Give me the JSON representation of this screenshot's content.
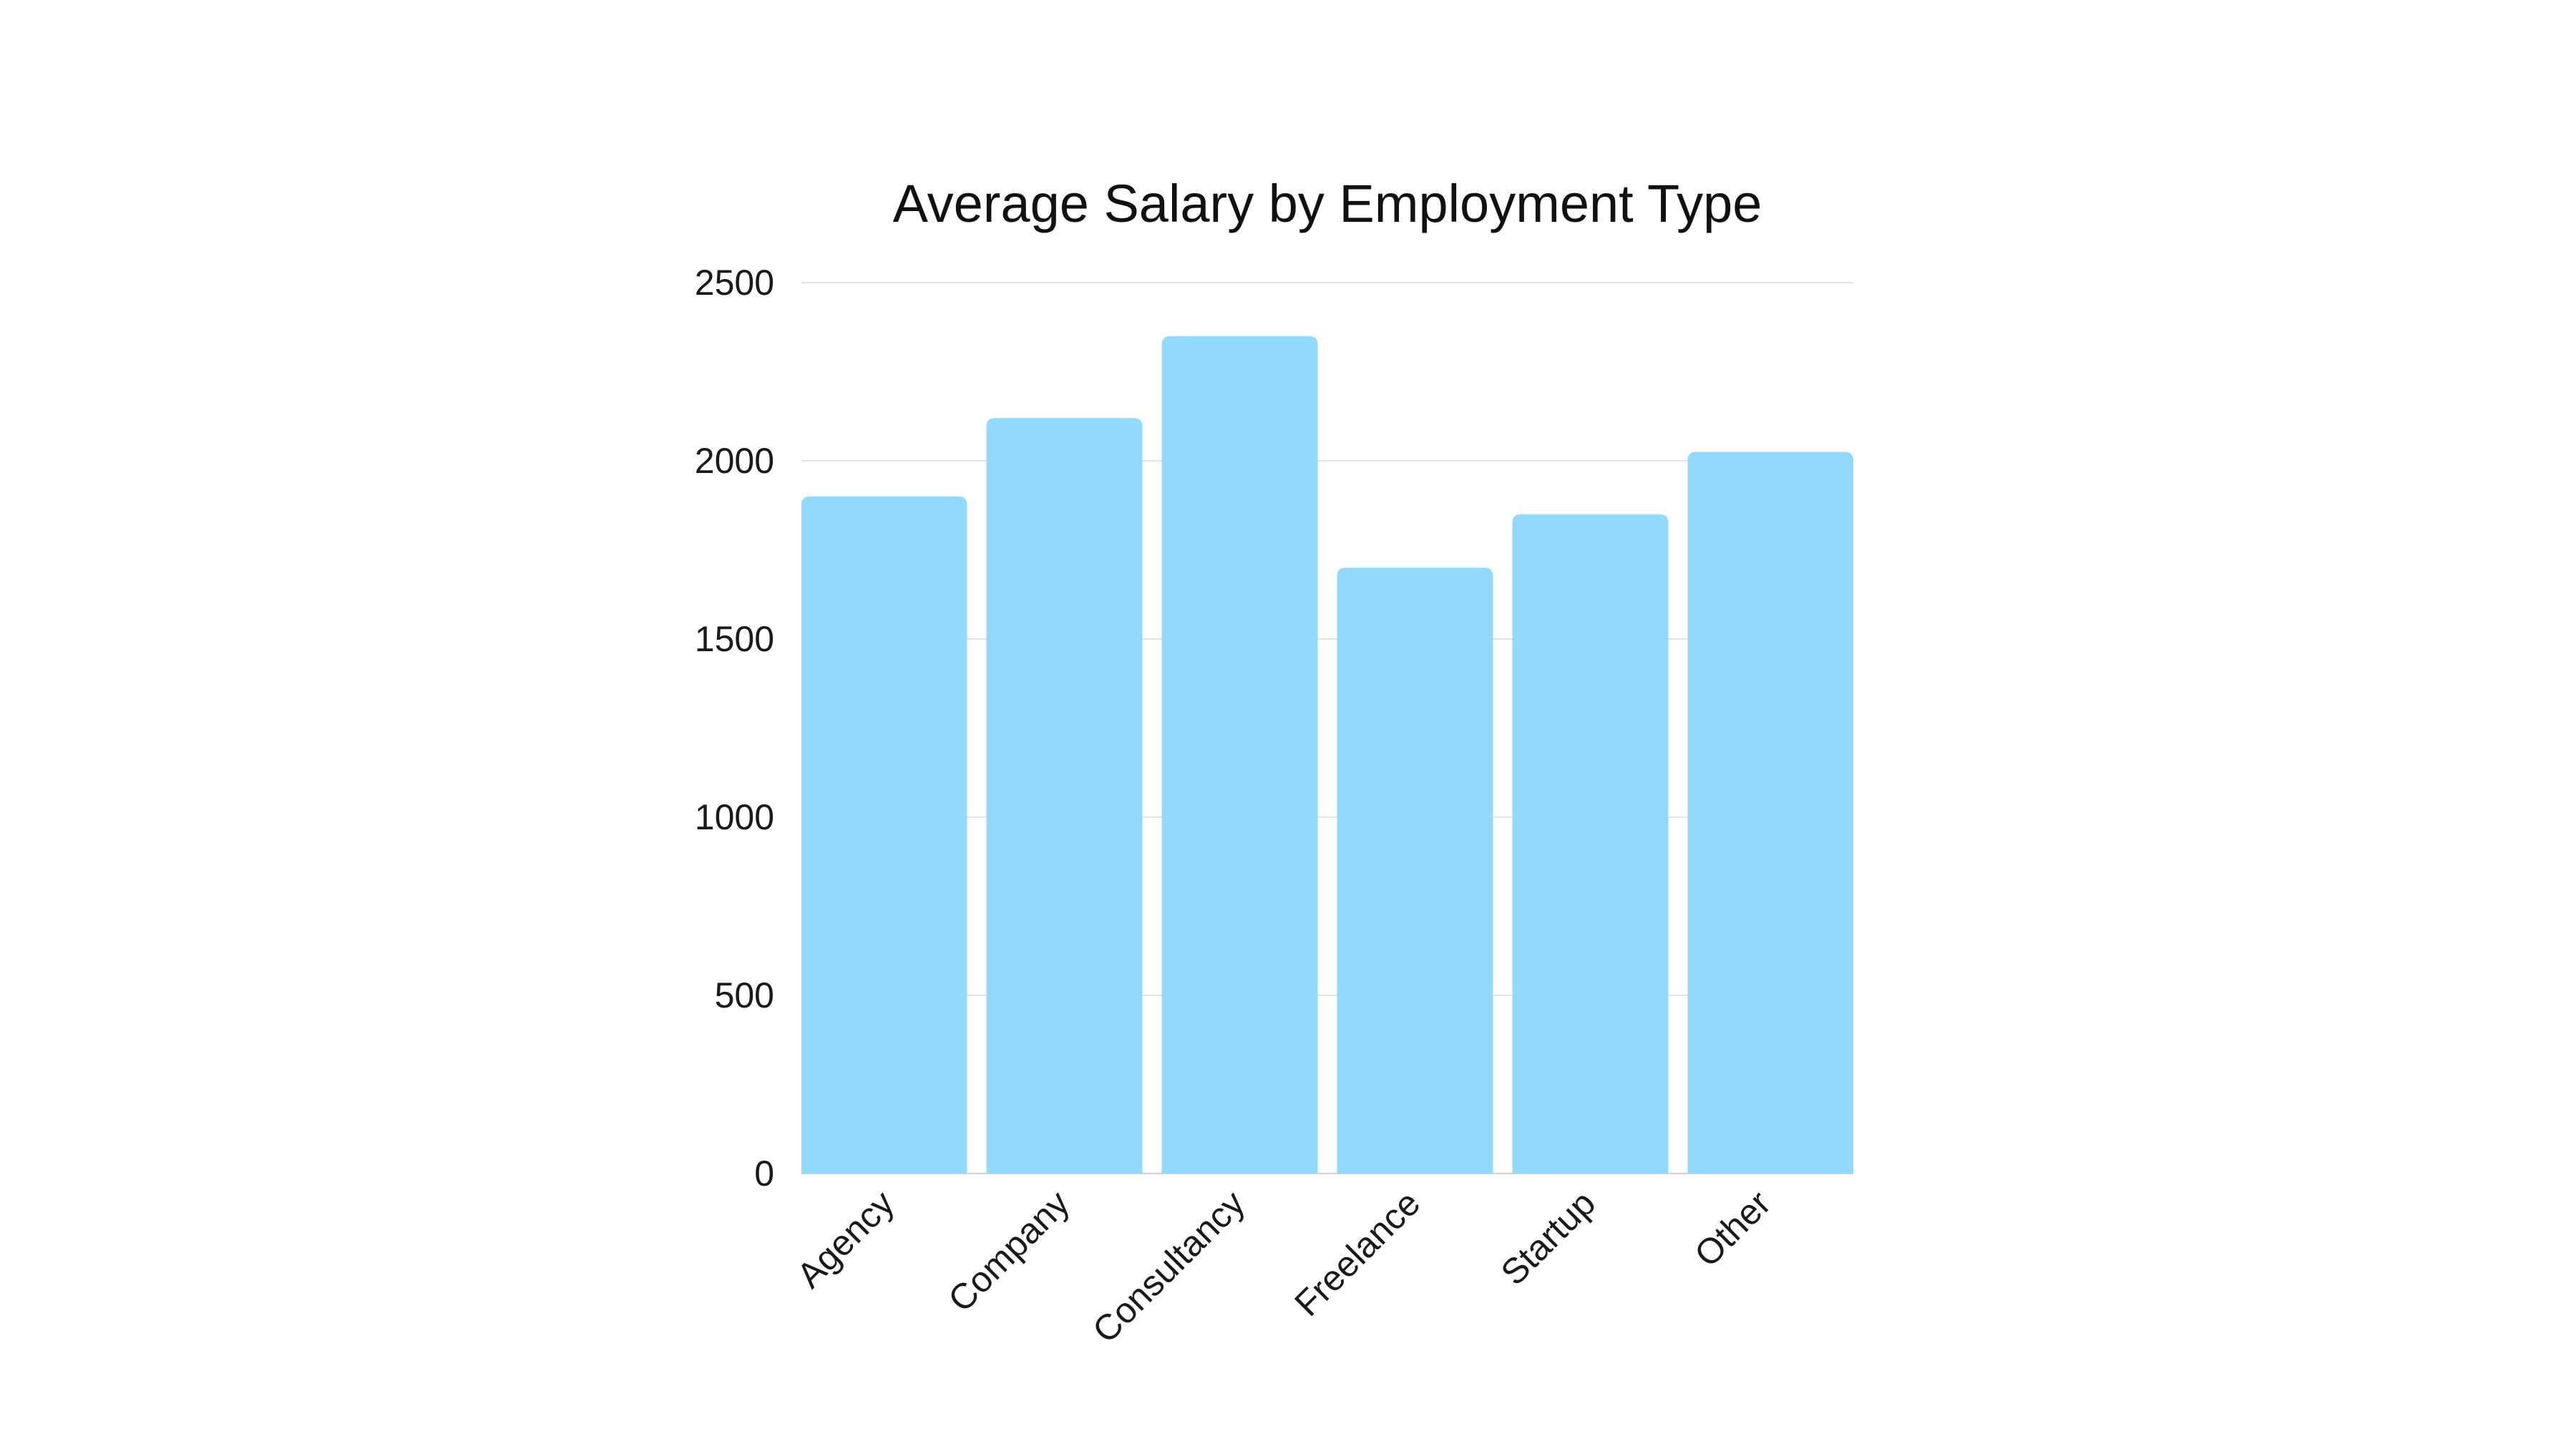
{
  "chart_data": {
    "type": "bar",
    "title": "Average Salary by Employment Type",
    "xlabel": "",
    "ylabel": "",
    "categories": [
      "Agency",
      "Company",
      "Consultancy",
      "Freelance",
      "Startup",
      "Other"
    ],
    "values": [
      1900,
      2120,
      2350,
      1700,
      1850,
      2025
    ],
    "ylim": [
      0,
      2500
    ],
    "yticks": [
      0,
      500,
      1000,
      1500,
      2000,
      2500
    ],
    "grid": true,
    "legend": "none",
    "bar_color": "#93d9fd"
  }
}
